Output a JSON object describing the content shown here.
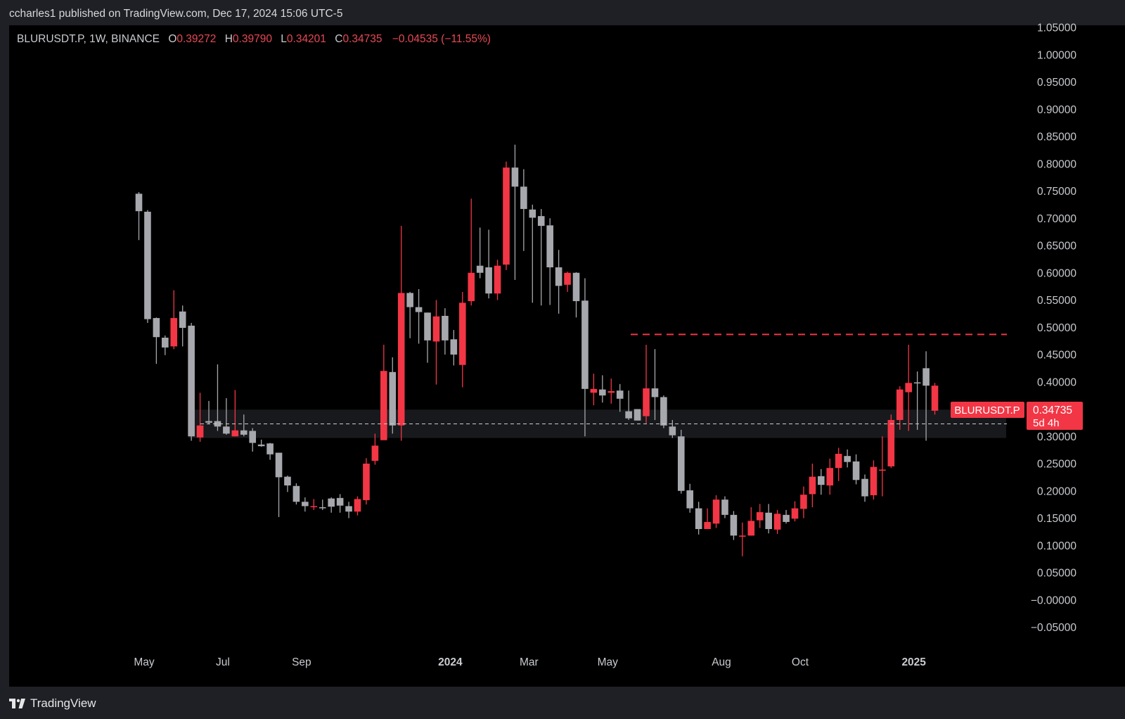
{
  "header": {
    "publish_line": "ccharles1 published on TradingView.com, Dec 17, 2024 15:06 UTC-5"
  },
  "legend": {
    "symbol_info": "BLURUSDT.P, 1W, BINANCE",
    "o_label": "O",
    "o_value": "0.39272",
    "h_label": "H",
    "h_value": "0.39790",
    "l_label": "L",
    "l_value": "0.34201",
    "c_label": "C",
    "c_value": "0.34735",
    "change": "−0.04535 (−11.55%)"
  },
  "price_tag": {
    "symbol": "BLURUSDT.P",
    "price": "0.34735",
    "countdown": "5d 4h"
  },
  "footer": {
    "brand": "TradingView"
  },
  "colors": {
    "up": "#a6a8ad",
    "down": "#f23645",
    "background": "#000000",
    "frame": "#1f2025"
  },
  "chart_data": {
    "type": "candlestick",
    "symbol": "BLURUSDT.P",
    "interval": "1W",
    "exchange": "BINANCE",
    "ylim": [
      -0.075,
      1.055
    ],
    "y_ticks": [
      "1.05000",
      "1.00000",
      "0.95000",
      "0.90000",
      "0.85000",
      "0.80000",
      "0.75000",
      "0.70000",
      "0.65000",
      "0.60000",
      "0.55000",
      "0.50000",
      "0.45000",
      "0.40000",
      "0.35000",
      "0.30000",
      "0.25000",
      "0.20000",
      "0.15000",
      "0.10000",
      "0.05000",
      "−0.00000",
      "−0.05000"
    ],
    "x_ticks": [
      {
        "label": "May",
        "bold": false,
        "index": 0.6
      },
      {
        "label": "Jul",
        "bold": false,
        "index": 9.6
      },
      {
        "label": "Sep",
        "bold": false,
        "index": 18.6
      },
      {
        "label": "2024",
        "bold": true,
        "index": 35.6
      },
      {
        "label": "Mar",
        "bold": false,
        "index": 44.6
      },
      {
        "label": "May",
        "bold": false,
        "index": 53.6
      },
      {
        "label": "Aug",
        "bold": false,
        "index": 66.6
      },
      {
        "label": "Oct",
        "bold": false,
        "index": 75.6
      },
      {
        "label": "2025",
        "bold": true,
        "index": 88.6
      }
    ],
    "candles": [
      {
        "o": 0.713,
        "h": 0.748,
        "l": 0.66,
        "c": 0.745
      },
      {
        "o": 0.515,
        "h": 0.715,
        "l": 0.508,
        "c": 0.712
      },
      {
        "o": 0.482,
        "h": 0.518,
        "l": 0.433,
        "c": 0.517
      },
      {
        "o": 0.463,
        "h": 0.485,
        "l": 0.449,
        "c": 0.481
      },
      {
        "o": 0.517,
        "h": 0.568,
        "l": 0.46,
        "c": 0.465
      },
      {
        "o": 0.499,
        "h": 0.54,
        "l": 0.465,
        "c": 0.529
      },
      {
        "o": 0.3,
        "h": 0.508,
        "l": 0.292,
        "c": 0.503
      },
      {
        "o": 0.32,
        "h": 0.38,
        "l": 0.29,
        "c": 0.298
      },
      {
        "o": 0.325,
        "h": 0.365,
        "l": 0.322,
        "c": 0.328
      },
      {
        "o": 0.318,
        "h": 0.432,
        "l": 0.31,
        "c": 0.328
      },
      {
        "o": 0.305,
        "h": 0.37,
        "l": 0.303,
        "c": 0.318
      },
      {
        "o": 0.311,
        "h": 0.385,
        "l": 0.3,
        "c": 0.3
      },
      {
        "o": 0.303,
        "h": 0.34,
        "l": 0.3,
        "c": 0.311
      },
      {
        "o": 0.288,
        "h": 0.315,
        "l": 0.272,
        "c": 0.31
      },
      {
        "o": 0.282,
        "h": 0.294,
        "l": 0.281,
        "c": 0.285
      },
      {
        "o": 0.267,
        "h": 0.288,
        "l": 0.257,
        "c": 0.287
      },
      {
        "o": 0.225,
        "h": 0.269,
        "l": 0.152,
        "c": 0.27
      },
      {
        "o": 0.21,
        "h": 0.228,
        "l": 0.198,
        "c": 0.226
      },
      {
        "o": 0.18,
        "h": 0.214,
        "l": 0.175,
        "c": 0.209
      },
      {
        "o": 0.172,
        "h": 0.188,
        "l": 0.162,
        "c": 0.18
      },
      {
        "o": 0.172,
        "h": 0.185,
        "l": 0.165,
        "c": 0.171
      },
      {
        "o": 0.169,
        "h": 0.184,
        "l": 0.165,
        "c": 0.17
      },
      {
        "o": 0.171,
        "h": 0.188,
        "l": 0.16,
        "c": 0.186
      },
      {
        "o": 0.173,
        "h": 0.194,
        "l": 0.16,
        "c": 0.187
      },
      {
        "o": 0.162,
        "h": 0.18,
        "l": 0.15,
        "c": 0.172
      },
      {
        "o": 0.185,
        "h": 0.19,
        "l": 0.155,
        "c": 0.162
      },
      {
        "o": 0.25,
        "h": 0.26,
        "l": 0.175,
        "c": 0.183
      },
      {
        "o": 0.283,
        "h": 0.305,
        "l": 0.248,
        "c": 0.255
      },
      {
        "o": 0.42,
        "h": 0.468,
        "l": 0.293,
        "c": 0.293
      },
      {
        "o": 0.32,
        "h": 0.445,
        "l": 0.305,
        "c": 0.418
      },
      {
        "o": 0.563,
        "h": 0.686,
        "l": 0.292,
        "c": 0.32
      },
      {
        "o": 0.537,
        "h": 0.565,
        "l": 0.48,
        "c": 0.563
      },
      {
        "o": 0.528,
        "h": 0.57,
        "l": 0.47,
        "c": 0.537
      },
      {
        "o": 0.476,
        "h": 0.527,
        "l": 0.435,
        "c": 0.527
      },
      {
        "o": 0.52,
        "h": 0.55,
        "l": 0.395,
        "c": 0.474
      },
      {
        "o": 0.476,
        "h": 0.535,
        "l": 0.45,
        "c": 0.521
      },
      {
        "o": 0.45,
        "h": 0.495,
        "l": 0.43,
        "c": 0.478
      },
      {
        "o": 0.545,
        "h": 0.565,
        "l": 0.39,
        "c": 0.431
      },
      {
        "o": 0.6,
        "h": 0.736,
        "l": 0.54,
        "c": 0.548
      },
      {
        "o": 0.6,
        "h": 0.683,
        "l": 0.59,
        "c": 0.613
      },
      {
        "o": 0.562,
        "h": 0.679,
        "l": 0.553,
        "c": 0.61
      },
      {
        "o": 0.613,
        "h": 0.624,
        "l": 0.55,
        "c": 0.562
      },
      {
        "o": 0.793,
        "h": 0.804,
        "l": 0.605,
        "c": 0.615
      },
      {
        "o": 0.758,
        "h": 0.835,
        "l": 0.587,
        "c": 0.793
      },
      {
        "o": 0.717,
        "h": 0.79,
        "l": 0.64,
        "c": 0.758
      },
      {
        "o": 0.701,
        "h": 0.725,
        "l": 0.545,
        "c": 0.716
      },
      {
        "o": 0.686,
        "h": 0.717,
        "l": 0.54,
        "c": 0.704
      },
      {
        "o": 0.61,
        "h": 0.7,
        "l": 0.541,
        "c": 0.687
      },
      {
        "o": 0.576,
        "h": 0.642,
        "l": 0.525,
        "c": 0.61
      },
      {
        "o": 0.6,
        "h": 0.602,
        "l": 0.565,
        "c": 0.578
      },
      {
        "o": 0.548,
        "h": 0.601,
        "l": 0.518,
        "c": 0.6
      },
      {
        "o": 0.387,
        "h": 0.59,
        "l": 0.3,
        "c": 0.549
      },
      {
        "o": 0.387,
        "h": 0.415,
        "l": 0.357,
        "c": 0.38
      },
      {
        "o": 0.375,
        "h": 0.412,
        "l": 0.362,
        "c": 0.386
      },
      {
        "o": 0.383,
        "h": 0.406,
        "l": 0.36,
        "c": 0.38
      },
      {
        "o": 0.369,
        "h": 0.396,
        "l": 0.345,
        "c": 0.384
      },
      {
        "o": 0.333,
        "h": 0.384,
        "l": 0.33,
        "c": 0.346
      },
      {
        "o": 0.329,
        "h": 0.345,
        "l": 0.338,
        "c": 0.35
      },
      {
        "o": 0.388,
        "h": 0.468,
        "l": 0.324,
        "c": 0.337
      },
      {
        "o": 0.372,
        "h": 0.46,
        "l": 0.33,
        "c": 0.388
      },
      {
        "o": 0.32,
        "h": 0.375,
        "l": 0.315,
        "c": 0.372
      },
      {
        "o": 0.302,
        "h": 0.33,
        "l": 0.297,
        "c": 0.318
      },
      {
        "o": 0.2,
        "h": 0.312,
        "l": 0.195,
        "c": 0.3
      },
      {
        "o": 0.168,
        "h": 0.213,
        "l": 0.16,
        "c": 0.201
      },
      {
        "o": 0.13,
        "h": 0.18,
        "l": 0.12,
        "c": 0.168
      },
      {
        "o": 0.143,
        "h": 0.168,
        "l": 0.138,
        "c": 0.13
      },
      {
        "o": 0.184,
        "h": 0.192,
        "l": 0.132,
        "c": 0.14
      },
      {
        "o": 0.156,
        "h": 0.19,
        "l": 0.15,
        "c": 0.184
      },
      {
        "o": 0.118,
        "h": 0.163,
        "l": 0.11,
        "c": 0.156
      },
      {
        "o": 0.118,
        "h": 0.142,
        "l": 0.08,
        "c": 0.116
      },
      {
        "o": 0.145,
        "h": 0.17,
        "l": 0.118,
        "c": 0.118
      },
      {
        "o": 0.161,
        "h": 0.176,
        "l": 0.132,
        "c": 0.146
      },
      {
        "o": 0.13,
        "h": 0.176,
        "l": 0.122,
        "c": 0.16
      },
      {
        "o": 0.158,
        "h": 0.165,
        "l": 0.121,
        "c": 0.129
      },
      {
        "o": 0.143,
        "h": 0.165,
        "l": 0.14,
        "c": 0.156
      },
      {
        "o": 0.168,
        "h": 0.181,
        "l": 0.144,
        "c": 0.149
      },
      {
        "o": 0.193,
        "h": 0.208,
        "l": 0.15,
        "c": 0.167
      },
      {
        "o": 0.226,
        "h": 0.25,
        "l": 0.17,
        "c": 0.194
      },
      {
        "o": 0.211,
        "h": 0.24,
        "l": 0.193,
        "c": 0.227
      },
      {
        "o": 0.242,
        "h": 0.259,
        "l": 0.193,
        "c": 0.21
      },
      {
        "o": 0.268,
        "h": 0.279,
        "l": 0.218,
        "c": 0.242
      },
      {
        "o": 0.253,
        "h": 0.276,
        "l": 0.243,
        "c": 0.264
      },
      {
        "o": 0.22,
        "h": 0.267,
        "l": 0.212,
        "c": 0.254
      },
      {
        "o": 0.19,
        "h": 0.23,
        "l": 0.18,
        "c": 0.222
      },
      {
        "o": 0.244,
        "h": 0.256,
        "l": 0.184,
        "c": 0.192
      },
      {
        "o": 0.239,
        "h": 0.3,
        "l": 0.19,
        "c": 0.238
      },
      {
        "o": 0.33,
        "h": 0.34,
        "l": 0.242,
        "c": 0.245
      },
      {
        "o": 0.386,
        "h": 0.392,
        "l": 0.312,
        "c": 0.33
      },
      {
        "o": 0.398,
        "h": 0.468,
        "l": 0.31,
        "c": 0.381
      },
      {
        "o": 0.399,
        "h": 0.419,
        "l": 0.312,
        "c": 0.399
      },
      {
        "o": 0.393,
        "h": 0.456,
        "l": 0.292,
        "c": 0.425
      },
      {
        "o": 0.393,
        "h": 0.398,
        "l": 0.34,
        "c": 0.347
      }
    ],
    "support_zone": {
      "from": 0.297,
      "to": 0.349
    },
    "resistance_level": 0.487,
    "last_price": 0.34735
  }
}
